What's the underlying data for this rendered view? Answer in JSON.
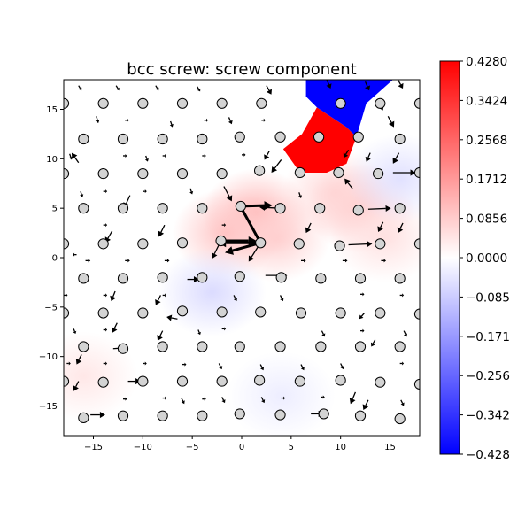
{
  "chart_data": {
    "type": "scatter",
    "title": "bcc screw: screw component",
    "xlabel": "",
    "ylabel": "",
    "xlim": [
      -18,
      18
    ],
    "ylim": [
      -18,
      18
    ],
    "xticks": [
      -15,
      -10,
      -5,
      0,
      5,
      10,
      15
    ],
    "xtick_labels": [
      "−15",
      "−10",
      "−5",
      "0",
      "5",
      "10",
      "15"
    ],
    "yticks": [
      -15,
      -10,
      -5,
      0,
      5,
      10,
      15
    ],
    "ytick_labels": [
      "−15",
      "−10",
      "−5",
      "0",
      "5",
      "10",
      "15"
    ],
    "colorbar": {
      "cmap": "bwr",
      "vmin": -0.428,
      "vmax": 0.428,
      "ticks": [
        0.428,
        0.3424,
        0.2568,
        0.1712,
        0.0856,
        0.0,
        -0.0856,
        -0.1712,
        -0.2568,
        -0.3424,
        -0.428
      ],
      "tick_labels": [
        "0.4280",
        "0.3424",
        "0.2568",
        "0.1712",
        "0.0856",
        "0.0000",
        "−0.0856",
        "−0.1712",
        "−0.2568",
        "−0.3424",
        "−0.4280"
      ]
    },
    "colors": {
      "positive": "#ff0000",
      "negative": "#0000ff",
      "zero": "#ffffff",
      "atom_fill": "#d3d3d3",
      "atom_edge": "#000000"
    },
    "color_regions": [
      {
        "name": "positive-patch",
        "value": 0.428,
        "points": [
          [
            6.1,
            12.5
          ],
          [
            7.6,
            15.2
          ],
          [
            10.6,
            13.2
          ],
          [
            11.6,
            12.2
          ],
          [
            10.6,
            9.5
          ],
          [
            8.6,
            8.6
          ],
          [
            5.9,
            8.6
          ],
          [
            4.2,
            11
          ]
        ]
      },
      {
        "name": "negative-patch",
        "value": -0.428,
        "points": [
          [
            6.5,
            18
          ],
          [
            15.3,
            18
          ],
          [
            12.6,
            15.6
          ],
          [
            11.6,
            12.2
          ],
          [
            10.6,
            13.2
          ],
          [
            7.6,
            15.2
          ],
          [
            6.5,
            16.3
          ]
        ]
      }
    ],
    "glows": [
      {
        "x": 1.5,
        "y": 4.5,
        "value": 0.12
      },
      {
        "x": -1.5,
        "y": 2.5,
        "value": 0.1
      },
      {
        "x": 3.5,
        "y": 2,
        "value": 0.08
      },
      {
        "x": 12,
        "y": 5,
        "value": 0.09
      },
      {
        "x": 9.5,
        "y": 6.5,
        "value": 0.07
      },
      {
        "x": 14.5,
        "y": 2,
        "value": 0.05
      },
      {
        "x": -3,
        "y": -3.5,
        "value": -0.06
      },
      {
        "x": 16,
        "y": 8,
        "value": -0.05
      },
      {
        "x": -16,
        "y": -12,
        "value": 0.04
      },
      {
        "x": 4,
        "y": -14,
        "value": -0.03
      }
    ],
    "atoms": [
      [
        -18,
        15.6
      ],
      [
        -14,
        15.6
      ],
      [
        -10,
        15.6
      ],
      [
        -6,
        15.6
      ],
      [
        -2,
        15.6
      ],
      [
        2,
        15.6
      ],
      [
        10,
        15.6
      ],
      [
        14,
        15.6
      ],
      [
        18,
        15.6
      ],
      [
        -16,
        12
      ],
      [
        -12,
        12
      ],
      [
        -8,
        12
      ],
      [
        -4,
        12
      ],
      [
        -0.2,
        12.2
      ],
      [
        3.9,
        12.2
      ],
      [
        7.8,
        12.2
      ],
      [
        11.8,
        12.2
      ],
      [
        16,
        12
      ],
      [
        -18,
        8.5
      ],
      [
        -14,
        8.5
      ],
      [
        -10,
        8.5
      ],
      [
        -6,
        8.5
      ],
      [
        -2,
        8.5
      ],
      [
        1.8,
        8.8
      ],
      [
        5.9,
        8.6
      ],
      [
        9.8,
        8.6
      ],
      [
        13.8,
        8.5
      ],
      [
        18,
        8.6
      ],
      [
        -16,
        5
      ],
      [
        -12,
        5
      ],
      [
        -8,
        5
      ],
      [
        -4,
        5
      ],
      [
        -0.1,
        5.2
      ],
      [
        3.9,
        5
      ],
      [
        7.9,
        5
      ],
      [
        11.8,
        4.8
      ],
      [
        16,
        5
      ],
      [
        -18,
        1.4
      ],
      [
        -14,
        1.4
      ],
      [
        -10,
        1.4
      ],
      [
        -6,
        1.5
      ],
      [
        -2.1,
        1.7
      ],
      [
        1.9,
        1.5
      ],
      [
        5.8,
        1.4
      ],
      [
        9.9,
        1.2
      ],
      [
        14,
        1.4
      ],
      [
        18,
        1.4
      ],
      [
        -16,
        -2.1
      ],
      [
        -12,
        -2.1
      ],
      [
        -8,
        -2
      ],
      [
        -4,
        -2
      ],
      [
        -0.2,
        -1.9
      ],
      [
        4,
        -2
      ],
      [
        8,
        -2.1
      ],
      [
        12,
        -2.1
      ],
      [
        16,
        -2.1
      ],
      [
        -18,
        -5.6
      ],
      [
        -14,
        -5.6
      ],
      [
        -10,
        -5.6
      ],
      [
        -6,
        -5.4
      ],
      [
        -2,
        -5.5
      ],
      [
        1.9,
        -5.5
      ],
      [
        6,
        -5.6
      ],
      [
        10,
        -5.6
      ],
      [
        14,
        -5.6
      ],
      [
        18,
        -5.7
      ],
      [
        -16,
        -9
      ],
      [
        -12,
        -9.2
      ],
      [
        -8,
        -9
      ],
      [
        -4,
        -9
      ],
      [
        -0.2,
        -9
      ],
      [
        3.9,
        -9
      ],
      [
        8,
        -9
      ],
      [
        12,
        -9
      ],
      [
        16,
        -9
      ],
      [
        -18,
        -12.5
      ],
      [
        -14,
        -12.6
      ],
      [
        -10,
        -12.5
      ],
      [
        -6,
        -12.5
      ],
      [
        -2,
        -12.5
      ],
      [
        1.8,
        -12.4
      ],
      [
        5.9,
        -12.5
      ],
      [
        10,
        -12.4
      ],
      [
        14,
        -12.6
      ],
      [
        18,
        -12.8
      ],
      [
        -16,
        -16.2
      ],
      [
        -12,
        -16
      ],
      [
        -8,
        -16
      ],
      [
        -4,
        -16
      ],
      [
        -0.2,
        -15.8
      ],
      [
        3.9,
        -15.9
      ],
      [
        8.3,
        -15.8
      ],
      [
        12,
        -16
      ],
      [
        16,
        -16.3
      ]
    ],
    "arrows": [
      [
        1.9,
        1.5,
        -2.3,
        4.2
      ],
      [
        1.9,
        1.5,
        -4.3,
        0
      ],
      [
        1.9,
        1.5,
        -3.6,
        -1
      ],
      [
        1.9,
        1.5,
        -1.2,
        -1.9
      ],
      [
        -2.1,
        1.7,
        3.6,
        0
      ],
      [
        -0.1,
        5.2,
        3.2,
        0.1
      ],
      [
        3.9,
        5,
        -2.1,
        0.1
      ],
      [
        -1.8,
        7.2,
        0.8,
        -1.5
      ],
      [
        -2.1,
        1.7,
        -0.9,
        -1.8
      ],
      [
        -5.5,
        -2.2,
        1.2,
        0
      ],
      [
        -6.5,
        -6.2,
        -1.1,
        0.2
      ],
      [
        2.4,
        -1.8,
        2.2,
        0
      ],
      [
        12.8,
        4.9,
        2.3,
        0.1
      ],
      [
        10.8,
        1.3,
        2.4,
        0.1
      ],
      [
        15.3,
        8.6,
        2.3,
        0
      ],
      [
        11.2,
        7,
        -0.8,
        1
      ],
      [
        4,
        9.9,
        -1,
        -1.3
      ],
      [
        -16.5,
        9.6,
        -0.7,
        1
      ],
      [
        -11.3,
        6.3,
        -0.6,
        -1.3
      ],
      [
        -7.8,
        3.3,
        -0.6,
        -1.2
      ],
      [
        -13.1,
        2.7,
        -0.7,
        -1.2
      ],
      [
        7,
        3.5,
        -0.5,
        -1
      ],
      [
        14.3,
        3.6,
        -0.5,
        -1
      ],
      [
        16.3,
        3.5,
        -0.5,
        -1
      ],
      [
        -13,
        -9.2,
        1.4,
        0.1
      ],
      [
        -12.6,
        -6.6,
        -0.5,
        -1
      ],
      [
        -8,
        -7.4,
        -0.5,
        -1
      ],
      [
        -8.2,
        -3.8,
        -0.5,
        -1
      ],
      [
        -12.8,
        -3.4,
        -0.4,
        -1
      ],
      [
        -16.5,
        -12.5,
        -0.5,
        -1
      ],
      [
        -15.3,
        -15.9,
        1.5,
        0
      ],
      [
        -11.5,
        -12.5,
        1.3,
        0
      ],
      [
        -16.2,
        -9.8,
        -0.5,
        -1
      ],
      [
        7,
        -15.8,
        1.3,
        0
      ],
      [
        11.5,
        -13.6,
        -0.5,
        -1.2
      ],
      [
        12.8,
        -14.4,
        -0.5,
        -1
      ],
      [
        -18,
        -14.3,
        -0.4,
        -0.9
      ],
      [
        12.4,
        -5.6,
        -0.5,
        -0.6
      ],
      [
        13.5,
        -8.3,
        -0.4,
        -0.7
      ],
      [
        10.9,
        10.3,
        0,
        0
      ],
      [
        10.8,
        10.9,
        -0.5,
        -0.8
      ],
      [
        13.8,
        15.8,
        0.5,
        -0.9
      ],
      [
        14.8,
        14.3,
        0.6,
        -1.1
      ],
      [
        15.9,
        10.6,
        -0.6,
        -1.1
      ],
      [
        13,
        10.6,
        -0.4,
        -0.9
      ],
      [
        2.5,
        17.4,
        0.5,
        -0.9
      ],
      [
        8.6,
        18,
        0.4,
        -0.9
      ],
      [
        12.5,
        17.8,
        0.4,
        -0.9
      ],
      [
        15.8,
        18,
        0.5,
        -0.9
      ],
      [
        2.8,
        10.8,
        -0.5,
        -0.9
      ],
      [
        -1.3,
        14.2,
        0.3,
        -0.7
      ],
      [
        -7.2,
        13.8,
        0.2,
        -0.6
      ],
      [
        -14.7,
        14.3,
        0.2,
        -0.7
      ],
      [
        -17.4,
        10.5,
        0.2,
        -0.6
      ],
      [
        -9.7,
        10.3,
        0.2,
        -0.6
      ],
      [
        -5.2,
        7,
        0.2,
        -0.6
      ],
      [
        -16.3,
        6.7,
        0.2,
        -0.6
      ],
      [
        5.8,
        6.6,
        0.2,
        -0.6
      ],
      [
        -17,
        -7.2,
        0.2,
        -0.5
      ],
      [
        -4.4,
        -7.3,
        0.2,
        -0.5
      ],
      [
        -0.8,
        -3.8,
        0.3,
        -0.6
      ],
      [
        3.9,
        -3.8,
        0.3,
        -0.6
      ],
      [
        8.1,
        -7.4,
        0.3,
        -0.6
      ],
      [
        16.4,
        -7.4,
        0.3,
        -0.6
      ],
      [
        -2.3,
        -10.7,
        0.3,
        -0.6
      ],
      [
        1.9,
        -10.8,
        0.3,
        -0.6
      ],
      [
        6,
        -10.8,
        0.3,
        -0.6
      ],
      [
        10,
        -10.7,
        0.3,
        -0.6
      ],
      [
        -6.1,
        -14.2,
        0.3,
        -0.6
      ],
      [
        -2,
        -14.1,
        0.3,
        -0.6
      ],
      [
        2,
        -14.1,
        0.3,
        -0.6
      ],
      [
        16.1,
        -14.4,
        0.3,
        -0.6
      ],
      [
        -16.5,
        17.4,
        0.3,
        -0.5
      ],
      [
        -12.7,
        17.4,
        0.3,
        -0.5
      ],
      [
        -8.7,
        17.4,
        0.3,
        -0.5
      ],
      [
        -4.5,
        17.3,
        0.3,
        -0.5
      ],
      [
        -7.8,
        -0.3,
        0.5,
        0
      ],
      [
        -11.8,
        -0.3,
        0.5,
        0
      ],
      [
        -15.8,
        -0.3,
        0.5,
        0
      ],
      [
        6,
        -0.3,
        0.5,
        0
      ],
      [
        10.2,
        -0.3,
        0.5,
        0
      ],
      [
        14.1,
        -0.3,
        0.5,
        0
      ],
      [
        -3.8,
        13.9,
        0.4,
        0
      ],
      [
        -11.8,
        13.9,
        0.4,
        0
      ],
      [
        2,
        13.9,
        0.4,
        0
      ],
      [
        -14,
        -7.3,
        0.4,
        0
      ],
      [
        -2,
        -7.2,
        0.4,
        0
      ],
      [
        12,
        -7.4,
        0.4,
        0
      ],
      [
        -18,
        -3.8,
        0.4,
        0
      ],
      [
        -4,
        -14.3,
        0.4,
        0
      ],
      [
        -8,
        -14.2,
        0.4,
        0
      ],
      [
        -12,
        -14.3,
        0.4,
        0
      ],
      [
        4,
        -14.2,
        0.4,
        0
      ],
      [
        8,
        -14.1,
        0.4,
        0
      ],
      [
        16,
        -3.8,
        0.4,
        0
      ],
      [
        12,
        -3.7,
        0.4,
        0
      ],
      [
        -8,
        -3.8,
        0.4,
        0
      ],
      [
        -14,
        -3.8,
        0.4,
        0
      ],
      [
        -16.7,
        0.3,
        -0.4,
        0
      ],
      [
        -4,
        10.3,
        0.4,
        0
      ],
      [
        -8,
        10.3,
        0.4,
        0
      ],
      [
        -12,
        10.3,
        0.4,
        0
      ],
      [
        0,
        10.4,
        0.4,
        0
      ],
      [
        -14,
        6.7,
        0.4,
        0
      ],
      [
        -10,
        6.7,
        0.4,
        0
      ],
      [
        -2,
        3.3,
        0.4,
        0
      ],
      [
        -14,
        3.3,
        0.4,
        0
      ],
      [
        16,
        -10.7,
        0.4,
        0
      ],
      [
        -10,
        -10.7,
        0.4,
        0
      ],
      [
        -6,
        -10.8,
        0.4,
        0
      ],
      [
        -14,
        -10.7,
        0.4,
        0
      ],
      [
        -17.7,
        -10.7,
        0.4,
        0
      ]
    ]
  }
}
